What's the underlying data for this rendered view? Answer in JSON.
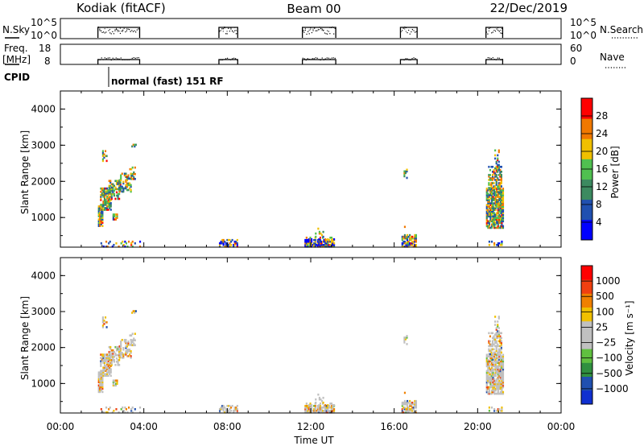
{
  "header": {
    "station": "Kodiak (fitACF)",
    "beam": "Beam 00",
    "date": "22/Dec/2019"
  },
  "aux": {
    "nsky_label": "N.Sky",
    "nsearch_label": "N.Search",
    "freq_label_1": "Freq.",
    "freq_label_2": "[MHz]",
    "nave_label": "Nave",
    "cpid_label": "CPID",
    "noise_left_ticks": [
      "10^5",
      "10^0"
    ],
    "noise_right_ticks": [
      "10^5",
      "10^0"
    ],
    "freq_left_ticks": [
      "18",
      "8"
    ],
    "nave_right_ticks": [
      "60",
      "0"
    ],
    "cpid_text": "normal (fast) 151 RF"
  },
  "chart_data": [
    {
      "type": "heatmap",
      "name": "power",
      "ylabel": "Slant Range [km]",
      "yticks": [
        "1000",
        "2000",
        "3000",
        "4000"
      ],
      "ylim": [
        180,
        4500
      ],
      "xlim": [
        0,
        24
      ],
      "colorbar_label": "Power [dB]",
      "colorbar_ticks": [
        "4",
        "8",
        "12",
        "16",
        "20",
        "24",
        "28"
      ],
      "colorbar_range": [
        0,
        32
      ],
      "colors": [
        "#0000ff",
        "#2050b0",
        "#3c8a60",
        "#50c050",
        "#f0c000",
        "#f07800",
        "#ff0000"
      ],
      "data_time_intervals_ut": [
        [
          1.8,
          3.8
        ],
        [
          7.6,
          8.5
        ],
        [
          11.6,
          13.2
        ],
        [
          16.3,
          17.1
        ],
        [
          20.4,
          21.2
        ]
      ]
    },
    {
      "type": "heatmap",
      "name": "velocity",
      "ylabel": "Slant Range [km]",
      "yticks": [
        "1000",
        "2000",
        "3000",
        "4000"
      ],
      "ylim": [
        180,
        4500
      ],
      "xlim": [
        0,
        24
      ],
      "xticks": [
        "00:00",
        "04:00",
        "08:00",
        "12:00",
        "16:00",
        "20:00",
        "00:00"
      ],
      "xlabel": "Time UT",
      "colorbar_label": "Velocity [m s⁻¹]",
      "colorbar_ticks": [
        "1000",
        "500",
        "100",
        "25",
        "−25",
        "−100",
        "−500",
        "−1000"
      ],
      "colors": [
        "#1030d0",
        "#2050b0",
        "#309040",
        "#60c040",
        "#c0c0c0",
        "#c0c0c0",
        "#f0c000",
        "#f08000",
        "#f04010",
        "#ff0000"
      ],
      "data_time_intervals_ut": [
        [
          1.8,
          3.8
        ],
        [
          7.6,
          8.5
        ],
        [
          11.6,
          13.2
        ],
        [
          16.3,
          17.1
        ],
        [
          20.4,
          21.2
        ]
      ]
    }
  ]
}
